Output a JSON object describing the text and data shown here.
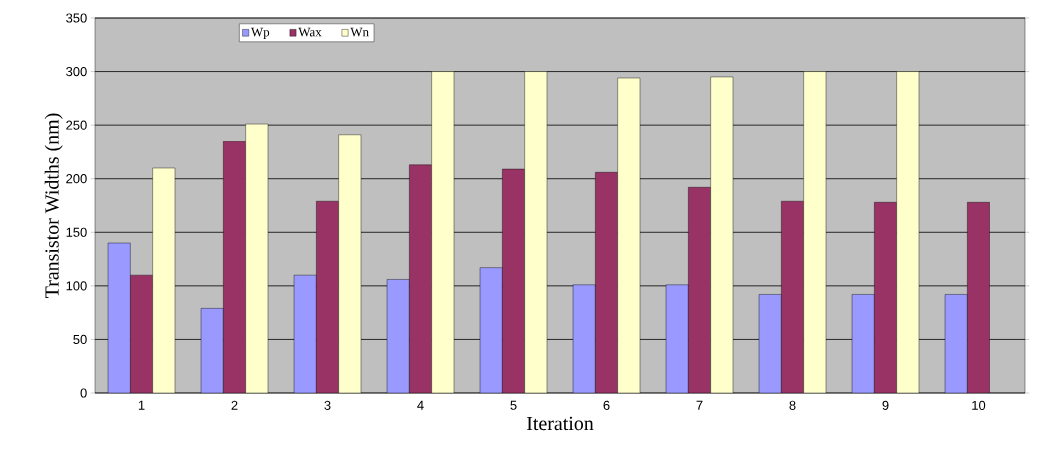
{
  "chart_data": {
    "type": "bar",
    "xlabel": "Iteration",
    "ylabel": "Transistor Widths (nm)",
    "categories": [
      "1",
      "2",
      "3",
      "4",
      "5",
      "6",
      "7",
      "8",
      "9",
      "10"
    ],
    "series": [
      {
        "name": "Wp",
        "color": "#9999ff",
        "values": [
          140,
          79,
          110,
          106,
          117,
          101,
          101,
          92,
          92,
          92
        ]
      },
      {
        "name": "Wax",
        "color": "#993366",
        "values": [
          110,
          235,
          179,
          213,
          209,
          206,
          192,
          179,
          178,
          178
        ]
      },
      {
        "name": "Wn",
        "color": "#ffffcc",
        "values": [
          210,
          251,
          241,
          300,
          300,
          294,
          295,
          300,
          300,
          null
        ]
      }
    ],
    "ylim": [
      0,
      350
    ],
    "yticks": [
      0,
      50,
      100,
      150,
      200,
      250,
      300,
      350
    ],
    "grid": "y",
    "legend": "top left"
  }
}
